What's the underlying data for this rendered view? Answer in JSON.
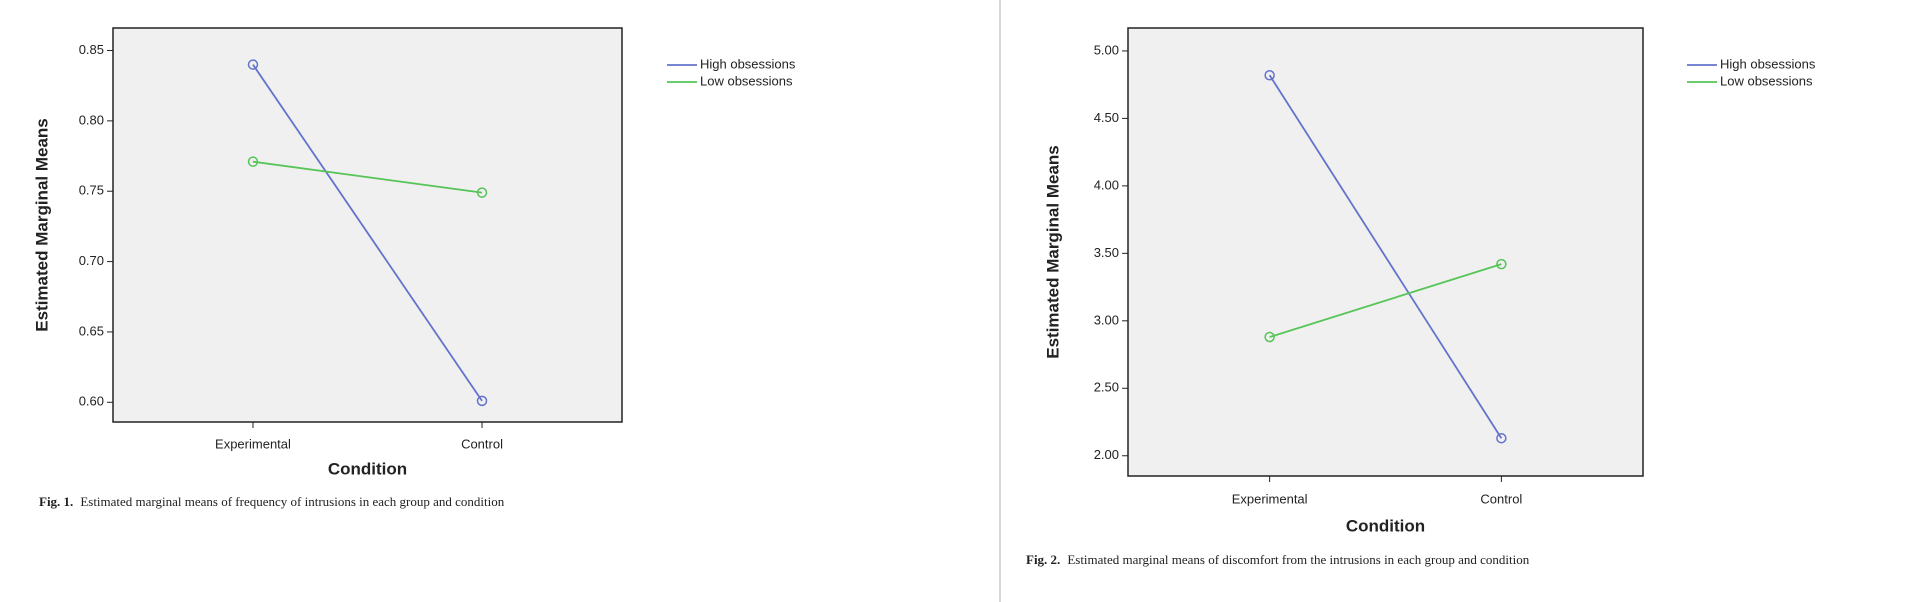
{
  "chart_data": [
    {
      "type": "line",
      "xlabel": "Condition",
      "ylabel": "Estimated Marginal Means",
      "categories": [
        "Experimental",
        "Control"
      ],
      "series": [
        {
          "name": "High obsessions",
          "color": "#6373cc",
          "values": [
            0.84,
            0.601
          ]
        },
        {
          "name": "Low obsessions",
          "color": "#56c456",
          "values": [
            0.771,
            0.749
          ]
        }
      ],
      "ylim": [
        0.586,
        0.866
      ],
      "yticks": [
        {
          "value": 0.6,
          "label": "0.60"
        },
        {
          "value": 0.65,
          "label": "0.65"
        },
        {
          "value": 0.7,
          "label": "0.70"
        },
        {
          "value": 0.75,
          "label": "0.75"
        },
        {
          "value": 0.8,
          "label": "0.80"
        },
        {
          "value": 0.85,
          "label": "0.85"
        }
      ],
      "grid": false,
      "legend": "outside-right",
      "caption_label": "Fig. 1.",
      "caption": "Estimated marginal means of frequency of intrusions in each group and condition"
    },
    {
      "type": "line",
      "xlabel": "Condition",
      "ylabel": "Estimated Marginal Means",
      "categories": [
        "Experimental",
        "Control"
      ],
      "series": [
        {
          "name": "High obsessions",
          "color": "#6373cc",
          "values": [
            4.82,
            2.13
          ]
        },
        {
          "name": "Low obsessions",
          "color": "#56c456",
          "values": [
            2.88,
            3.42
          ]
        }
      ],
      "ylim": [
        1.85,
        5.17
      ],
      "yticks": [
        {
          "value": 2,
          "label": "2.00"
        },
        {
          "value": 2.5,
          "label": "2.50"
        },
        {
          "value": 3,
          "label": "3.00"
        },
        {
          "value": 3.5,
          "label": "3.50"
        },
        {
          "value": 4,
          "label": "4.00"
        },
        {
          "value": 4.5,
          "label": "4.50"
        },
        {
          "value": 5,
          "label": "5.00"
        }
      ],
      "grid": false,
      "legend": "outside-right",
      "caption_label": "Fig. 2.",
      "caption": "Estimated marginal means of discomfort from the intrusions in each group and condition"
    }
  ]
}
